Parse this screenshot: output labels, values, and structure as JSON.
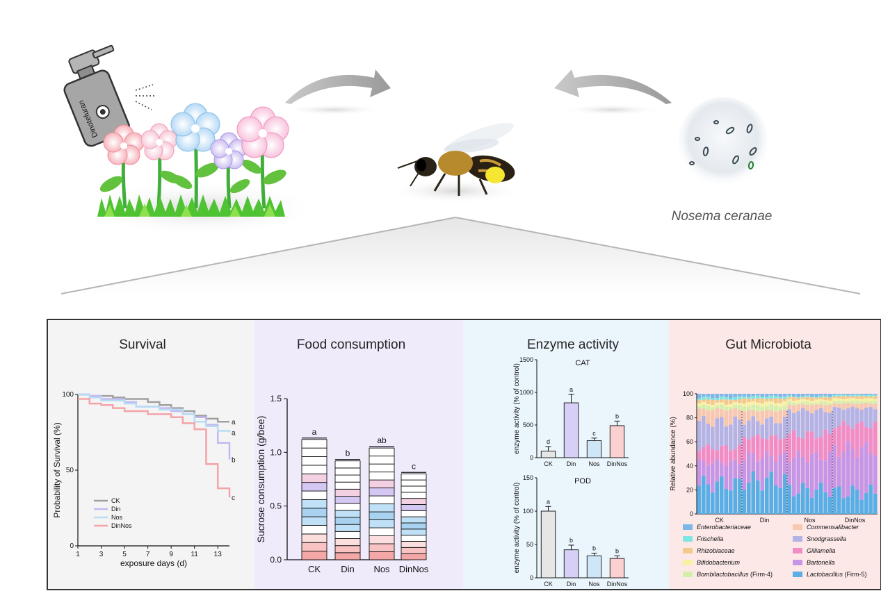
{
  "top": {
    "bottle_label": "Dinotefuran",
    "pathogen_label": "Nosema ceranae"
  },
  "panels": {
    "survival": "Survival",
    "food": "Food consumption",
    "enzyme": "Enzyme activity",
    "gut": "Gut Microbiota"
  },
  "chart_data": [
    {
      "type": "line",
      "xlabel": "exposure days (d)",
      "ylabel": "Probability of Survival (%)",
      "xlim": [
        1,
        14
      ],
      "ylim": [
        0,
        100
      ],
      "xticks": [
        "1",
        "3",
        "5",
        "7",
        "9",
        "11",
        "13"
      ],
      "yticks": [
        "0",
        "50",
        "100"
      ],
      "series": [
        {
          "name": "CK",
          "color": "#a0a0a0",
          "sig": "a",
          "x": [
            1,
            2,
            4,
            5,
            7,
            8,
            9,
            10,
            11,
            12,
            13,
            14
          ],
          "y": [
            100,
            99,
            98,
            97,
            95,
            93,
            91,
            89,
            86,
            84,
            82,
            82
          ]
        },
        {
          "name": "Din",
          "color": "#c3b8f2",
          "sig": "b",
          "x": [
            1,
            2,
            3,
            5,
            6,
            8,
            9,
            10,
            11,
            12,
            13,
            14
          ],
          "y": [
            100,
            99,
            97,
            95,
            92,
            91,
            89,
            87,
            85,
            80,
            68,
            57
          ]
        },
        {
          "name": "Nos",
          "color": "#b8dcf2",
          "sig": "a",
          "x": [
            1,
            2,
            3,
            5,
            6,
            8,
            10,
            11,
            12,
            13,
            14
          ],
          "y": [
            100,
            98,
            96,
            94,
            92,
            90,
            87,
            82,
            79,
            76,
            75
          ]
        },
        {
          "name": "DinNos",
          "color": "#f4a3a8",
          "sig": "c",
          "x": [
            1,
            2,
            3,
            4,
            5,
            7,
            9,
            10,
            11,
            12,
            13,
            14
          ],
          "y": [
            97,
            94,
            93,
            91,
            89,
            87,
            85,
            81,
            77,
            54,
            38,
            32
          ]
        }
      ]
    },
    {
      "type": "bar",
      "ylabel": "Sucrose consumption (g/bee)",
      "ylim": [
        0,
        1.5
      ],
      "yticks": [
        "0.0",
        "0.5",
        "1.0",
        "1.5"
      ],
      "categories": [
        "CK",
        "Din",
        "Nos",
        "DinNos"
      ],
      "values": [
        1.12,
        0.92,
        1.04,
        0.8
      ],
      "sig": [
        "a",
        "b",
        "ab",
        "c"
      ],
      "segments": 14
    },
    {
      "type": "bar",
      "title": "CAT",
      "ylabel": "enzyme activity (% of control)",
      "ylim": [
        0,
        1500
      ],
      "yticks": [
        "0",
        "500",
        "1000",
        "1500"
      ],
      "categories": [
        "CK",
        "Din",
        "Nos",
        "DinNos"
      ],
      "values": [
        100,
        840,
        260,
        490
      ],
      "errors": [
        70,
        130,
        40,
        70
      ],
      "sig": [
        "d",
        "a",
        "c",
        "b"
      ]
    },
    {
      "type": "bar",
      "title": "POD",
      "ylabel": "enzyme activity (% of control)",
      "ylim": [
        0,
        150
      ],
      "yticks": [
        "0",
        "50",
        "100",
        "150"
      ],
      "categories": [
        "CK",
        "Din",
        "Nos",
        "DinNos"
      ],
      "values": [
        100,
        42,
        33,
        29
      ],
      "errors": [
        7,
        7,
        4,
        4
      ],
      "sig": [
        "a",
        "b",
        "b",
        "b"
      ]
    },
    {
      "type": "bar",
      "stacked": true,
      "ylabel": "Relative abundance (%)",
      "ylim": [
        0,
        100
      ],
      "yticks": [
        "0",
        "20",
        "40",
        "60",
        "80",
        "100"
      ],
      "groups": [
        "CK",
        "Din",
        "Nos",
        "DinNos"
      ],
      "bars_per_group": 10,
      "series": [
        {
          "name": "Lactobacillus",
          "suffix": "(Firm-5)",
          "color": "#5aaee6"
        },
        {
          "name": "Bartonella",
          "color": "#c795e6"
        },
        {
          "name": "Gilliamella",
          "color": "#f08dc7"
        },
        {
          "name": "Snodgrassella",
          "color": "#b3b3e6"
        },
        {
          "name": "Commensalibacter",
          "color": "#f7c8b0"
        },
        {
          "name": "Bombilactobacillus",
          "suffix": "(Firm-4)",
          "color": "#d3f0a8"
        },
        {
          "name": "Bifidobacterium",
          "color": "#f7f2a0"
        },
        {
          "name": "Rhizobiaceae",
          "color": "#f3c98c"
        },
        {
          "name": "Frischella",
          "color": "#7fe6e1"
        },
        {
          "name": "Enterobacteriaceae",
          "color": "#7db6e8"
        }
      ]
    }
  ]
}
